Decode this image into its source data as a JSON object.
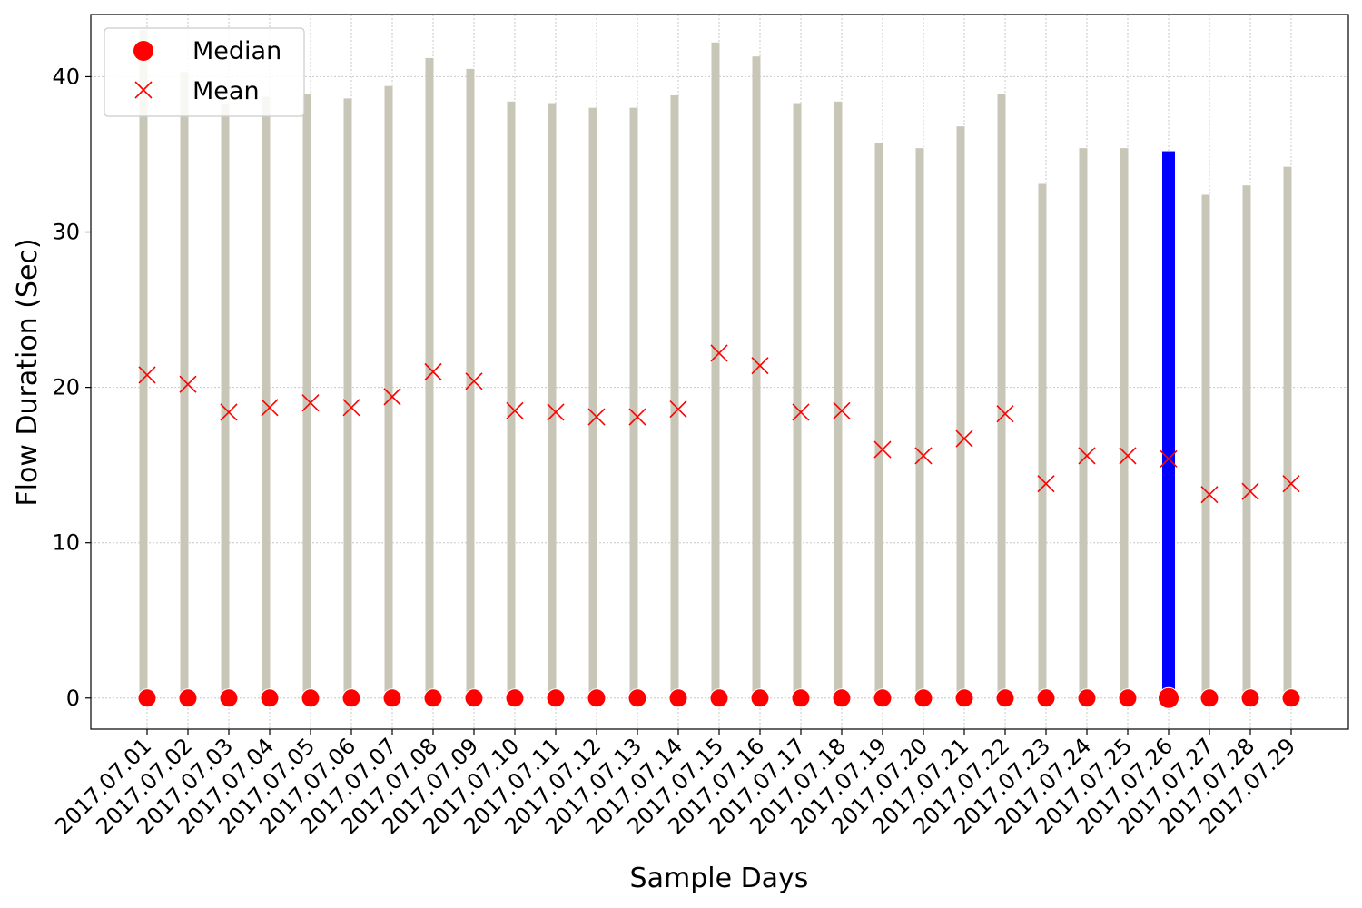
{
  "chart_data": {
    "type": "scatter",
    "title": "",
    "xlabel": "Sample Days",
    "ylabel": "Flow Duration (Sec)",
    "ylim": [
      -2,
      44
    ],
    "yticks": [
      0,
      10,
      20,
      30,
      40
    ],
    "grid": true,
    "legend_position": "upper-left",
    "categories": [
      "2017.07.01",
      "2017.07.02",
      "2017.07.03",
      "2017.07.04",
      "2017.07.05",
      "2017.07.06",
      "2017.07.07",
      "2017.07.08",
      "2017.07.09",
      "2017.07.10",
      "2017.07.11",
      "2017.07.12",
      "2017.07.13",
      "2017.07.14",
      "2017.07.15",
      "2017.07.16",
      "2017.07.17",
      "2017.07.18",
      "2017.07.19",
      "2017.07.20",
      "2017.07.21",
      "2017.07.22",
      "2017.07.23",
      "2017.07.24",
      "2017.07.25",
      "2017.07.26",
      "2017.07.27",
      "2017.07.28",
      "2017.07.29"
    ],
    "ranges": [
      {
        "low": 0,
        "high": 43.0
      },
      {
        "low": 0,
        "high": 40.3
      },
      {
        "low": 0,
        "high": 38.2
      },
      {
        "low": 0,
        "high": 38.7
      },
      {
        "low": 0,
        "high": 38.9
      },
      {
        "low": 0,
        "high": 38.6
      },
      {
        "low": 0,
        "high": 39.4
      },
      {
        "low": 0,
        "high": 41.2
      },
      {
        "low": 0,
        "high": 40.5
      },
      {
        "low": 0,
        "high": 38.4
      },
      {
        "low": 0,
        "high": 38.3
      },
      {
        "low": 0,
        "high": 38.0
      },
      {
        "low": 0,
        "high": 38.0
      },
      {
        "low": 0,
        "high": 38.8
      },
      {
        "low": 0,
        "high": 42.2
      },
      {
        "low": 0,
        "high": 41.3
      },
      {
        "low": 0,
        "high": 38.3
      },
      {
        "low": 0,
        "high": 38.4
      },
      {
        "low": 0,
        "high": 35.7
      },
      {
        "low": 0,
        "high": 35.4
      },
      {
        "low": 0,
        "high": 36.8
      },
      {
        "low": 0,
        "high": 38.9
      },
      {
        "low": 0,
        "high": 33.1
      },
      {
        "low": 0,
        "high": 35.4
      },
      {
        "low": 0,
        "high": 35.4
      },
      {
        "low": 0,
        "high": 35.2
      },
      {
        "low": 0,
        "high": 32.4
      },
      {
        "low": 0,
        "high": 33.0
      },
      {
        "low": 0,
        "high": 34.2
      }
    ],
    "highlighted_category": "2017.07.26",
    "series": [
      {
        "name": "Median",
        "marker": "circle",
        "values": [
          0,
          0,
          0,
          0,
          0,
          0,
          0,
          0,
          0,
          0,
          0,
          0,
          0,
          0,
          0,
          0,
          0,
          0,
          0,
          0,
          0,
          0,
          0,
          0,
          0,
          0,
          0,
          0,
          0
        ]
      },
      {
        "name": "Mean",
        "marker": "x",
        "values": [
          20.8,
          20.2,
          18.4,
          18.7,
          19.0,
          18.7,
          19.4,
          21.0,
          20.4,
          18.5,
          18.4,
          18.1,
          18.1,
          18.6,
          22.2,
          21.4,
          18.4,
          18.5,
          16.0,
          15.6,
          16.7,
          18.3,
          13.8,
          15.6,
          15.6,
          15.4,
          13.1,
          13.3,
          13.8
        ]
      }
    ],
    "colors": {
      "range": "#c8c6b6",
      "highlight": "#0000ff",
      "median": "#ff0000",
      "mean": "#ff0000",
      "grid": "#c8c8c8",
      "axis": "#000000"
    }
  }
}
